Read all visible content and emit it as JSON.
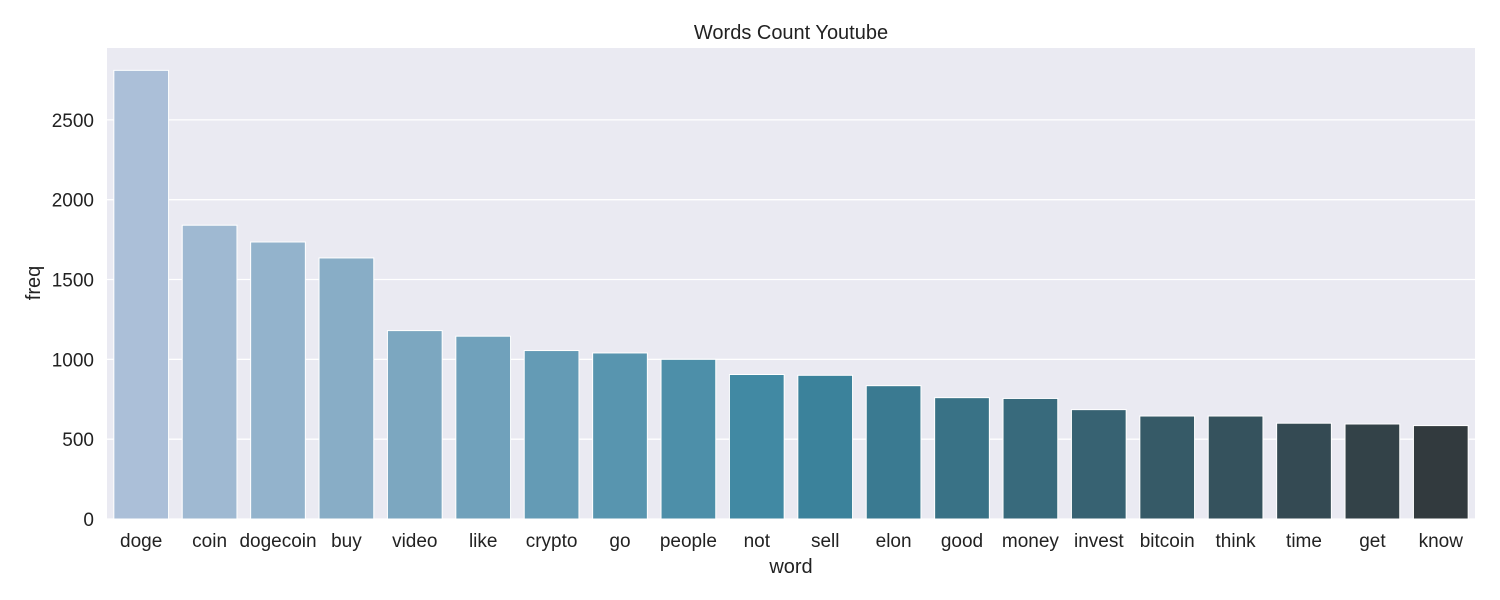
{
  "chart_data": {
    "type": "bar",
    "title": "Words Count Youtube",
    "xlabel": "word",
    "ylabel": "freq",
    "ylim": [
      0,
      2950
    ],
    "yticks": [
      0,
      500,
      1000,
      1500,
      2000,
      2500
    ],
    "grid": true,
    "categories": [
      "doge",
      "coin",
      "dogecoin",
      "buy",
      "video",
      "like",
      "crypto",
      "go",
      "people",
      "not",
      "sell",
      "elon",
      "good",
      "money",
      "invest",
      "bitcoin",
      "think",
      "time",
      "get",
      "know"
    ],
    "values": [
      2810,
      1840,
      1735,
      1635,
      1180,
      1145,
      1055,
      1040,
      1000,
      905,
      900,
      835,
      760,
      755,
      685,
      645,
      645,
      600,
      595,
      585
    ],
    "colors": {
      "plot_background": "#eaeaf2",
      "grid": "#ffffff",
      "bar_start": "#abbfd8",
      "bar_mid": "#3b86a0",
      "bar_end": "#323a3e"
    }
  }
}
